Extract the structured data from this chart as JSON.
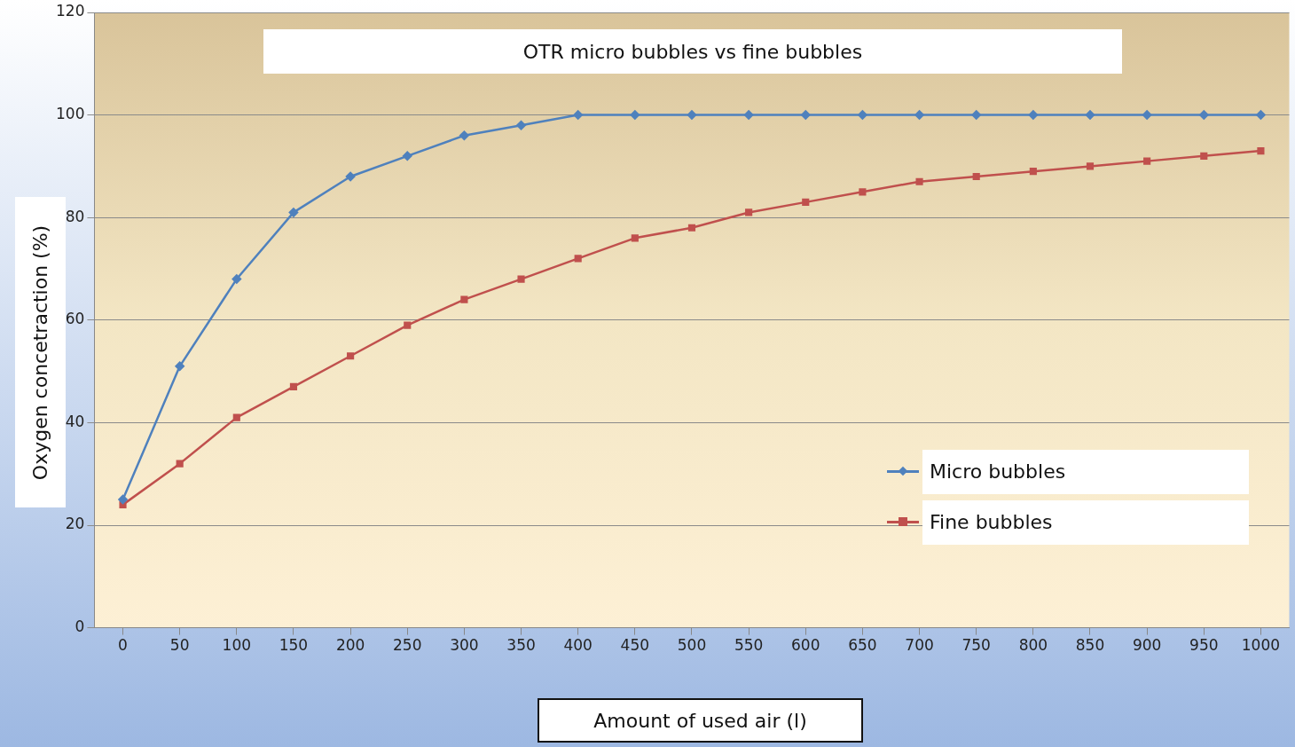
{
  "chart_data": {
    "type": "line",
    "title": "OTR micro bubbles vs fine bubbles",
    "xlabel": "Amount of used air (l)",
    "ylabel": "Oxygen concetraction (%)",
    "categories": [
      "0",
      "50",
      "100",
      "150",
      "200",
      "250",
      "300",
      "350",
      "400",
      "450",
      "500",
      "550",
      "600",
      "650",
      "700",
      "750",
      "800",
      "850",
      "900",
      "950",
      "1000"
    ],
    "series": [
      {
        "name": "Micro bubbles",
        "color": "#4f81bd",
        "marker": "diamond",
        "values": [
          25,
          51,
          68,
          81,
          88,
          92,
          96,
          98,
          100,
          100,
          100,
          100,
          100,
          100,
          100,
          100,
          100,
          100,
          100,
          100,
          100
        ]
      },
      {
        "name": "Fine bubbles",
        "color": "#c0504d",
        "marker": "square",
        "values": [
          24,
          32,
          41,
          47,
          53,
          59,
          64,
          68,
          72,
          76,
          78,
          81,
          83,
          85,
          87,
          88,
          89,
          90,
          91,
          92,
          93
        ]
      }
    ],
    "ylim": [
      0,
      120
    ],
    "yticks": [
      0,
      20,
      40,
      60,
      80,
      100,
      120
    ],
    "grid": "y",
    "legend": "right",
    "line_style": "solid"
  }
}
